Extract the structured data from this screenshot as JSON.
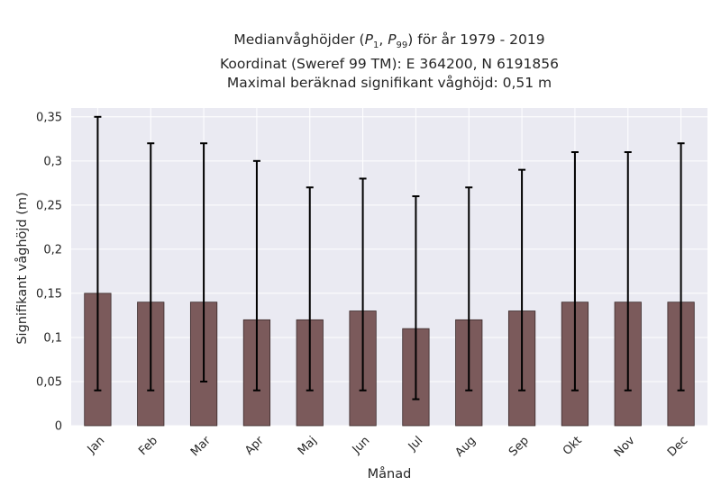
{
  "title": {
    "line1_pre": "Medianvåghöjder (",
    "line1_math": "P",
    "line1_sub1": "1",
    "line1_sep": ", ",
    "line1_math2": "P",
    "line1_sub2": "99",
    "line1_post": ") för år 1979 - 2019",
    "line2": "Koordinat (Sweref 99 TM): E 364200, N 6191856",
    "line3": "Maximal beräknad signifikant våghöjd: 0,51 m"
  },
  "colors": {
    "bar": "#7b5a5b",
    "bar_edge": "#3a2a2a",
    "plot_bg": "#eaeaf2",
    "grid": "#ffffff",
    "error": "#000000"
  },
  "chart_data": {
    "type": "bar",
    "xlabel": "Månad",
    "ylabel": "Signifikant våghöjd (m)",
    "ylim": [
      0,
      0.36
    ],
    "yticks": [
      0,
      0.05,
      0.1,
      0.15,
      0.2,
      0.25,
      0.3,
      0.35
    ],
    "ytick_labels": [
      "0",
      "0,05",
      "0,1",
      "0,15",
      "0,2",
      "0,25",
      "0,3",
      "0,35"
    ],
    "grid": true,
    "categories": [
      "Jan",
      "Feb",
      "Mar",
      "Apr",
      "Maj",
      "Jun",
      "Jul",
      "Aug",
      "Sep",
      "Okt",
      "Nov",
      "Dec"
    ],
    "values": [
      0.15,
      0.14,
      0.14,
      0.12,
      0.12,
      0.13,
      0.11,
      0.12,
      0.13,
      0.14,
      0.14,
      0.14
    ],
    "err_low": [
      0.04,
      0.04,
      0.05,
      0.04,
      0.04,
      0.04,
      0.03,
      0.04,
      0.04,
      0.04,
      0.04,
      0.04
    ],
    "err_high": [
      0.35,
      0.32,
      0.32,
      0.3,
      0.27,
      0.28,
      0.26,
      0.27,
      0.29,
      0.31,
      0.31,
      0.32
    ]
  }
}
